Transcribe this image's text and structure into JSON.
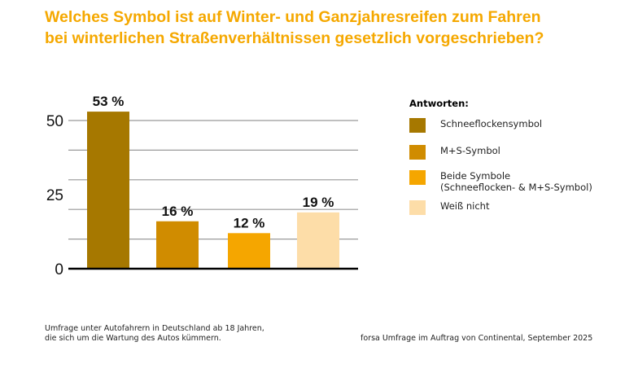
{
  "title_lines": [
    "Welches Symbol ist auf Winter- und Ganzjahresreifen zum Fahren",
    "bei winterlichen Straßenverhältnissen gesetzlich vorgeschrieben?"
  ],
  "chart_data": {
    "type": "bar",
    "title": "Welches Symbol ist auf Winter- und Ganzjahresreifen zum Fahren bei winterlichen Straßenverhältnissen gesetzlich vorgeschrieben?",
    "categories": [
      "Schneeflockensymbol",
      "M+S-Symbol",
      "Beide Symbole (Schneeflocken- & M+S-Symbol)",
      "Weiß nicht"
    ],
    "values": [
      53,
      16,
      12,
      19
    ],
    "data_labels": [
      "53 %",
      "16 %",
      "12 %",
      "19 %"
    ],
    "colors": [
      "#a67800",
      "#d08c00",
      "#f5a600",
      "#fddda8"
    ],
    "ylim": [
      0,
      50
    ],
    "yticks": [
      0,
      25,
      50
    ],
    "ytick_labels": [
      "0",
      "25",
      "50"
    ],
    "gridlines": [
      10,
      20,
      30,
      40,
      50
    ],
    "grid": true,
    "legend_placement": "right"
  },
  "legend": {
    "title": "Antworten:",
    "items": [
      {
        "label_lines": [
          "Schneeflockensymbol"
        ]
      },
      {
        "label_lines": [
          "M+S-Symbol"
        ]
      },
      {
        "label_lines": [
          "Beide Symbole",
          "(Schneeflocken- & M+S-Symbol)"
        ]
      },
      {
        "label_lines": [
          "Weiß nicht"
        ]
      }
    ]
  },
  "footer": {
    "left_lines": [
      "Umfrage unter Autofahrern in Deutschland ab 18 Jahren,",
      "die sich um die Wartung des Autos kümmern."
    ],
    "right": "forsa Umfrage im Auftrag von Continental, September 2025"
  }
}
